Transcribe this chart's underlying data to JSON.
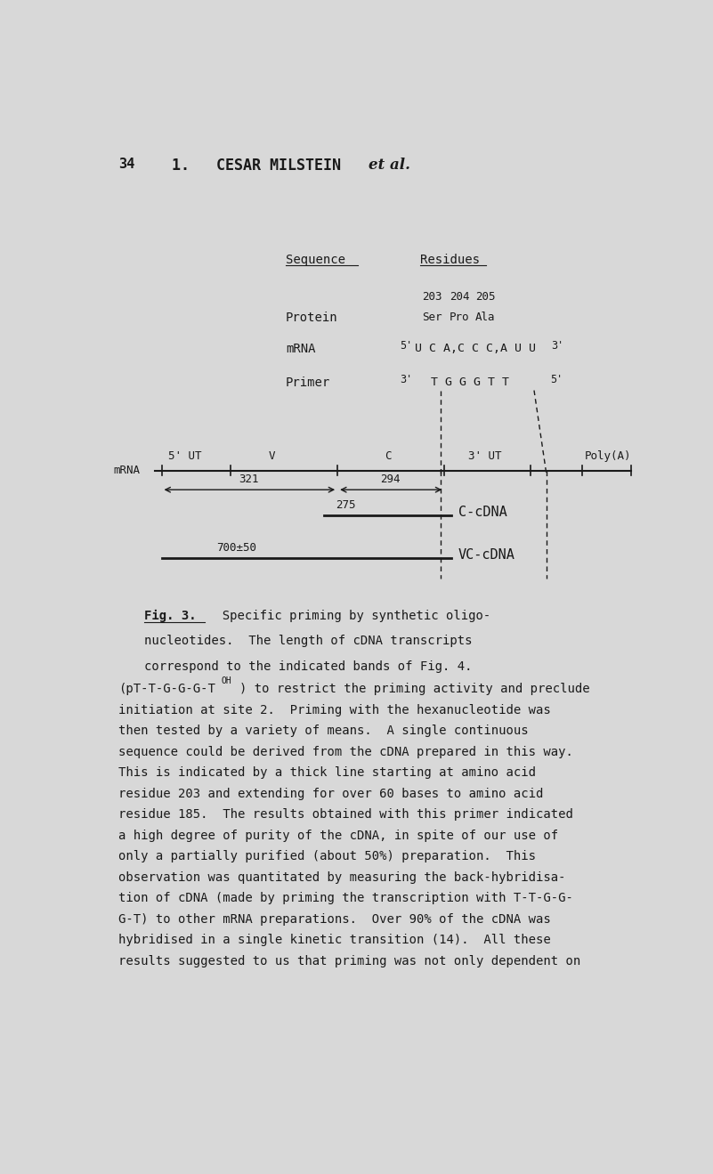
{
  "bg_color": "#d8d8d8",
  "page_number": "34",
  "font_color": "#1a1a1a",
  "mono_font": "DejaVu Sans Mono",
  "serif_font": "DejaVu Serif",
  "residue_numbers": [
    "203",
    "204",
    "205"
  ],
  "protein_residues": [
    "Ser",
    "Pro",
    "Ala"
  ],
  "mrna_sequence": "U C A,C C C,A U U",
  "primer_sequence": "T G G G T T",
  "axis_segments": [
    "5' UT",
    "V",
    "C",
    "3' UT",
    "Poly(A)"
  ],
  "measurement_321": "321",
  "measurement_294": "294",
  "measurement_275": "275",
  "measurement_700": "700±50",
  "cdna_c_label": "C-cDNA",
  "cdna_vc_label": "VC-cDNA",
  "fig_caption_bold": "Fig. 3.",
  "body_text_lines": [
    "initiation at site 2.  Priming with the hexanucleotide was",
    "then tested by a variety of means.  A single continuous",
    "sequence could be derived from the cDNA prepared in this way.",
    "This is indicated by a thick line starting at amino acid",
    "residue 203 and extending for over 60 bases to amino acid",
    "residue 185.  The results obtained with this primer indicated",
    "a high degree of purity of the cDNA, in spite of our use of",
    "only a partially purified (about 50%) preparation.  This",
    "observation was quantitated by measuring the back-hybridisa-",
    "tion of cDNA (made by priming the transcription with T-T-G-G-",
    "G-T) to other mRNA preparations.  Over 90% of the cDNA was",
    "hybridised in a single kinetic transition (14).  All these",
    "results suggested to us that priming was not only dependent on"
  ]
}
